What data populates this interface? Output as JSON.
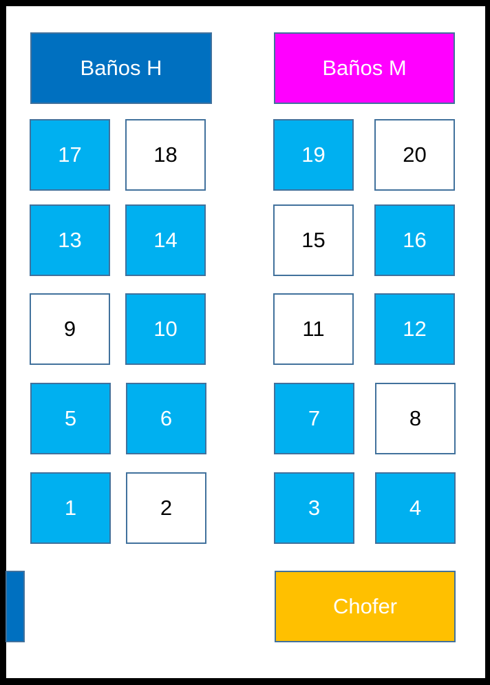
{
  "bathrooms": [
    {
      "label": "Baños H",
      "color": "#0070C0"
    },
    {
      "label": "Baños M",
      "color": "#FF00FF"
    }
  ],
  "driver": {
    "label": "Chofer",
    "color": "#FFC000"
  },
  "door": {
    "color": "#0070C0"
  },
  "legend_colors": {
    "occupied": "#00B0F0",
    "available": "#FFFFFF"
  },
  "seats": [
    {
      "number": "17",
      "occupied": true
    },
    {
      "number": "18",
      "occupied": false
    },
    {
      "number": "19",
      "occupied": true
    },
    {
      "number": "20",
      "occupied": false
    },
    {
      "number": "13",
      "occupied": true
    },
    {
      "number": "14",
      "occupied": true
    },
    {
      "number": "15",
      "occupied": false
    },
    {
      "number": "16",
      "occupied": true
    },
    {
      "number": "9",
      "occupied": false
    },
    {
      "number": "10",
      "occupied": true
    },
    {
      "number": "11",
      "occupied": false
    },
    {
      "number": "12",
      "occupied": true
    },
    {
      "number": "5",
      "occupied": true
    },
    {
      "number": "6",
      "occupied": true
    },
    {
      "number": "7",
      "occupied": true
    },
    {
      "number": "8",
      "occupied": false
    },
    {
      "number": "1",
      "occupied": true
    },
    {
      "number": "2",
      "occupied": false
    },
    {
      "number": "3",
      "occupied": true
    },
    {
      "number": "4",
      "occupied": true
    }
  ]
}
